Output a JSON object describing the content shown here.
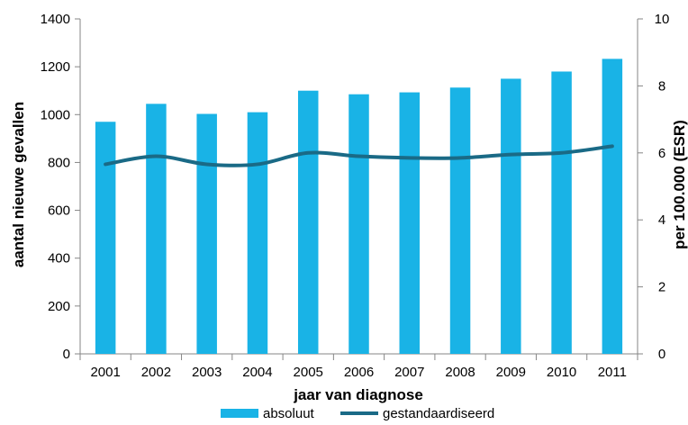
{
  "chart_data": {
    "type": "bar",
    "categories": [
      "2001",
      "2002",
      "2003",
      "2004",
      "2005",
      "2006",
      "2007",
      "2008",
      "2009",
      "2010",
      "2011"
    ],
    "series": [
      {
        "name": "absoluut",
        "type": "bar",
        "axis": "left",
        "color": "#19b3e6",
        "values": [
          970,
          1045,
          1003,
          1010,
          1100,
          1085,
          1093,
          1113,
          1150,
          1180,
          1233
        ]
      },
      {
        "name": "gestandaardiseerd",
        "type": "line",
        "axis": "right",
        "color": "#1a6a86",
        "values": [
          5.66,
          5.9,
          5.66,
          5.66,
          6.0,
          5.9,
          5.85,
          5.85,
          5.95,
          6.0,
          6.2
        ]
      }
    ],
    "xlabel": "jaar van diagnose",
    "ylabel": "aantal nieuwe gevallen",
    "y2label": "per 100.000 (ESR)",
    "ylim": [
      0,
      1400
    ],
    "y2lim": [
      0,
      10
    ],
    "yticks": [
      "0",
      "200",
      "400",
      "600",
      "800",
      "1000",
      "1200",
      "1400"
    ],
    "y2ticks": [
      "0",
      "2",
      "4",
      "6",
      "8",
      "10"
    ],
    "grid": false,
    "legend": "bottom"
  }
}
